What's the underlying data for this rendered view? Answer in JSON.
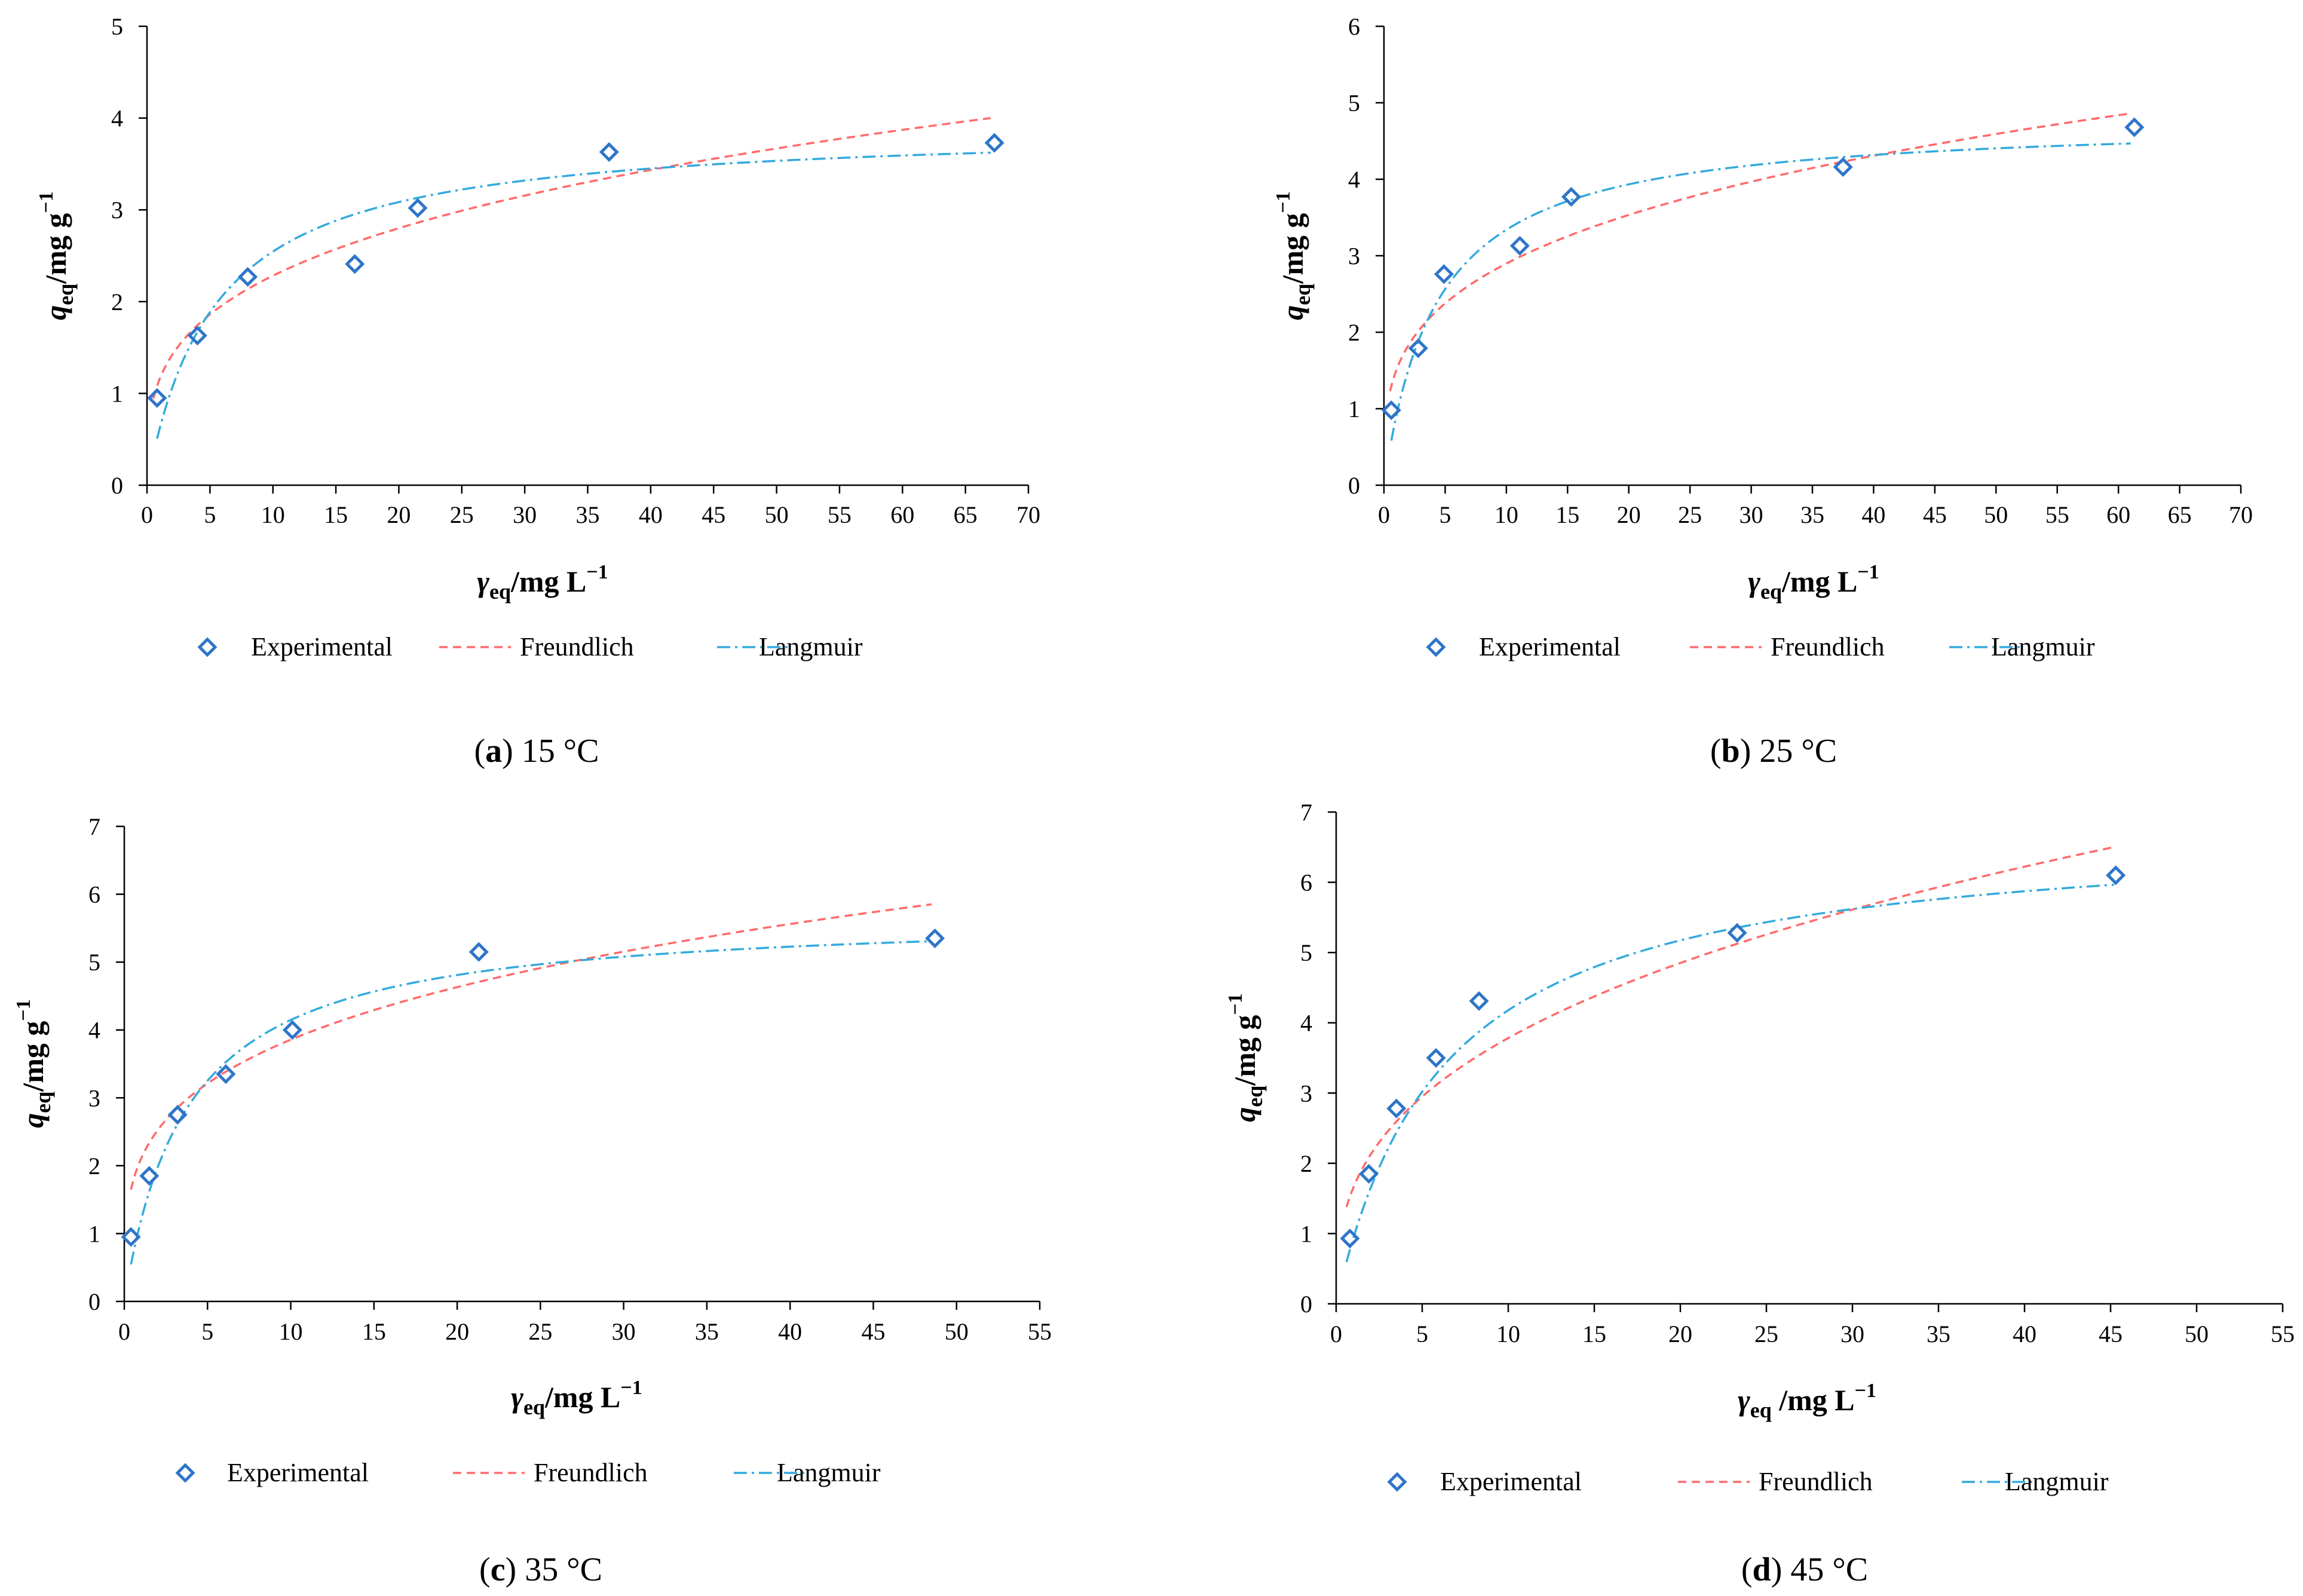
{
  "figure": {
    "legend": {
      "experimental": "Experimental",
      "freundlich": "Freundlich",
      "langmuir": "Langmuir"
    },
    "colors": {
      "experimental": "#2e75c8",
      "freundlich": "#ff6b6b",
      "langmuir": "#33aadd",
      "axis": "#000000"
    }
  },
  "chart_data": [
    {
      "type": "scatter",
      "panel_letter": "a",
      "panel_temp": "15 °C",
      "ylabel_main": "q",
      "ylabel_sub": "eq",
      "ylabel_unit": "/mg g",
      "ylabel_sup": "−1",
      "xlabel_main": "γ",
      "xlabel_sub": "eq",
      "xlabel_unit": "/mg L",
      "xlabel_sup": "−1",
      "xlim": [
        0,
        70
      ],
      "xstep": 5,
      "ylim": [
        0,
        5
      ],
      "ystep": 1,
      "xticks": [
        "0",
        "5",
        "10",
        "15",
        "20",
        "25",
        "30",
        "35",
        "40",
        "45",
        "50",
        "55",
        "60",
        "65",
        "70"
      ],
      "yticks": [
        "0",
        "1",
        "2",
        "3",
        "4",
        "5"
      ],
      "experimental": {
        "x": [
          0.8,
          4.0,
          8.0,
          16.5,
          21.5,
          36.7,
          67.3
        ],
        "y": [
          0.95,
          1.63,
          2.27,
          2.41,
          3.02,
          3.63,
          3.73
        ]
      },
      "freundlich": {
        "K": 1.157,
        "n": 0.295,
        "xmin": 0.5,
        "xmax": 67
      },
      "langmuir": {
        "qmax": 3.914,
        "K": 0.186,
        "xmin": 0.8,
        "xmax": 67
      }
    },
    {
      "type": "scatter",
      "panel_letter": "b",
      "panel_temp": "25 °C",
      "ylabel_main": "q",
      "ylabel_sub": "eq",
      "ylabel_unit": "/mg g",
      "ylabel_sup": "−1",
      "xlabel_main": "γ",
      "xlabel_sub": "eq",
      "xlabel_unit": "/mg L",
      "xlabel_sup": "−1",
      "xlim": [
        0,
        70
      ],
      "xstep": 5,
      "ylim": [
        0,
        6
      ],
      "ystep": 1,
      "xticks": [
        "0",
        "5",
        "10",
        "15",
        "20",
        "25",
        "30",
        "35",
        "40",
        "45",
        "50",
        "55",
        "60",
        "65",
        "70"
      ],
      "yticks": [
        "0",
        "1",
        "2",
        "3",
        "4",
        "5",
        "6"
      ],
      "experimental": {
        "x": [
          0.6,
          2.8,
          4.9,
          11.1,
          15.3,
          37.5,
          61.3
        ],
        "y": [
          0.98,
          1.79,
          2.76,
          3.13,
          3.77,
          4.16,
          4.68
        ]
      },
      "freundlich": {
        "K": 1.5,
        "n": 0.286,
        "xmin": 0.5,
        "xmax": 61
      },
      "langmuir": {
        "qmax": 4.785,
        "K": 0.231,
        "xmin": 0.6,
        "xmax": 61
      }
    },
    {
      "type": "scatter",
      "panel_letter": "c",
      "panel_temp": "35 °C",
      "ylabel_main": "q",
      "ylabel_sub": "eq",
      "ylabel_unit": "/mg g",
      "ylabel_sup": "−1",
      "xlabel_main": "γ",
      "xlabel_sub": "eq",
      "xlabel_unit": "/mg L",
      "xlabel_sup": "−1",
      "xlim": [
        0,
        55
      ],
      "xstep": 5,
      "ylim": [
        0,
        7
      ],
      "ystep": 1,
      "xticks": [
        "0",
        "5",
        "10",
        "15",
        "20",
        "25",
        "30",
        "35",
        "40",
        "45",
        "50",
        "55"
      ],
      "yticks": [
        "0",
        "1",
        "2",
        "3",
        "4",
        "5",
        "6",
        "7"
      ],
      "experimental": {
        "x": [
          0.4,
          1.5,
          3.2,
          6.1,
          10.1,
          21.3,
          48.7
        ],
        "y": [
          0.95,
          1.85,
          2.75,
          3.35,
          4.0,
          5.15,
          5.35
        ]
      },
      "freundlich": {
        "K": 2.1,
        "n": 0.264,
        "xmin": 0.4,
        "xmax": 48.5
      },
      "langmuir": {
        "qmax": 5.724,
        "K": 0.263,
        "xmin": 0.4,
        "xmax": 48.5
      }
    },
    {
      "type": "scatter",
      "panel_letter": "d",
      "panel_temp": "45 °C",
      "ylabel_main": "q",
      "ylabel_sub": "eq",
      "ylabel_unit": "/mg g",
      "ylabel_sup": "−1",
      "xlabel_main": "γ",
      "xlabel_sub": "eq",
      "xlabel_unit": " /mg L",
      "xlabel_sup": "−1",
      "xlim": [
        0,
        55
      ],
      "xstep": 5,
      "ylim": [
        0,
        7
      ],
      "ystep": 1,
      "xticks": [
        "0",
        "5",
        "10",
        "15",
        "20",
        "25",
        "30",
        "35",
        "40",
        "45",
        "50",
        "55"
      ],
      "yticks": [
        "0",
        "1",
        "2",
        "3",
        "4",
        "5",
        "6",
        "7"
      ],
      "experimental": {
        "x": [
          0.8,
          1.9,
          3.5,
          5.8,
          8.3,
          23.3,
          45.3
        ],
        "y": [
          0.93,
          1.85,
          2.78,
          3.5,
          4.31,
          5.28,
          6.1
        ]
      },
      "freundlich": {
        "K": 1.655,
        "n": 0.359,
        "xmin": 0.6,
        "xmax": 45.2
      },
      "langmuir": {
        "qmax": 6.79,
        "K": 0.16,
        "xmin": 0.6,
        "xmax": 45.2
      }
    }
  ]
}
